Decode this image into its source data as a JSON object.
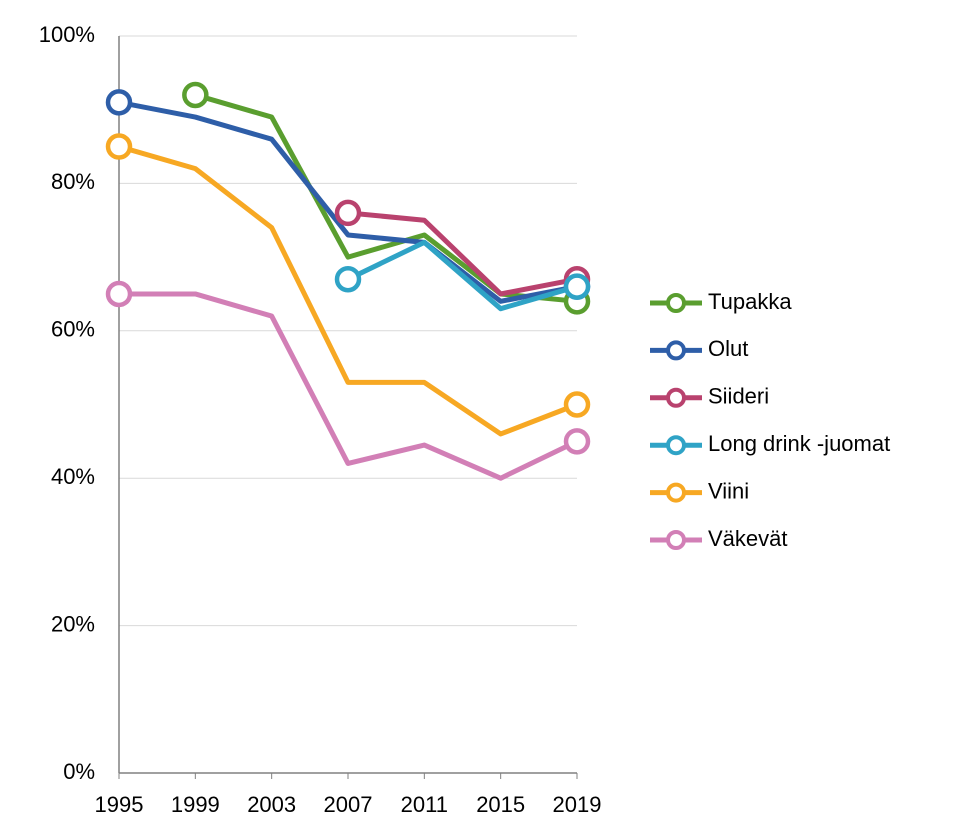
{
  "chart_data": {
    "type": "line",
    "x": [
      1995,
      1999,
      2003,
      2007,
      2011,
      2015,
      2019
    ],
    "xlim": [
      1995,
      2019
    ],
    "xticks": [
      1995,
      1999,
      2003,
      2007,
      2011,
      2015,
      2019
    ],
    "ylim": [
      0,
      100
    ],
    "yticks": [
      {
        "value": 0,
        "label": "0%"
      },
      {
        "value": 20,
        "label": "20%"
      },
      {
        "value": 40,
        "label": "40%"
      },
      {
        "value": 60,
        "label": "60%"
      },
      {
        "value": 80,
        "label": "80%"
      },
      {
        "value": 100,
        "label": "100%"
      }
    ],
    "grid": true,
    "legend": "right",
    "series": [
      {
        "name": "Tupakka",
        "color": "#5a9e2f",
        "values": [
          null,
          92,
          89,
          70,
          73,
          65,
          64
        ]
      },
      {
        "name": "Olut",
        "color": "#2e5ea8",
        "values": [
          91,
          89,
          86,
          73,
          72,
          64,
          66
        ]
      },
      {
        "name": "Siideri",
        "color": "#b9426e",
        "values": [
          null,
          null,
          null,
          76,
          75,
          65,
          67
        ]
      },
      {
        "name": "Long drink -juomat",
        "color": "#2fa3c6",
        "values": [
          null,
          null,
          null,
          67,
          72,
          63,
          66
        ]
      },
      {
        "name": "Viini",
        "color": "#f7a823",
        "values": [
          85,
          82,
          74,
          53,
          53,
          46,
          50
        ]
      },
      {
        "name": "Väkevät",
        "color": "#d27fb6",
        "values": [
          65,
          65,
          62,
          42,
          44.5,
          40,
          45
        ]
      }
    ]
  }
}
